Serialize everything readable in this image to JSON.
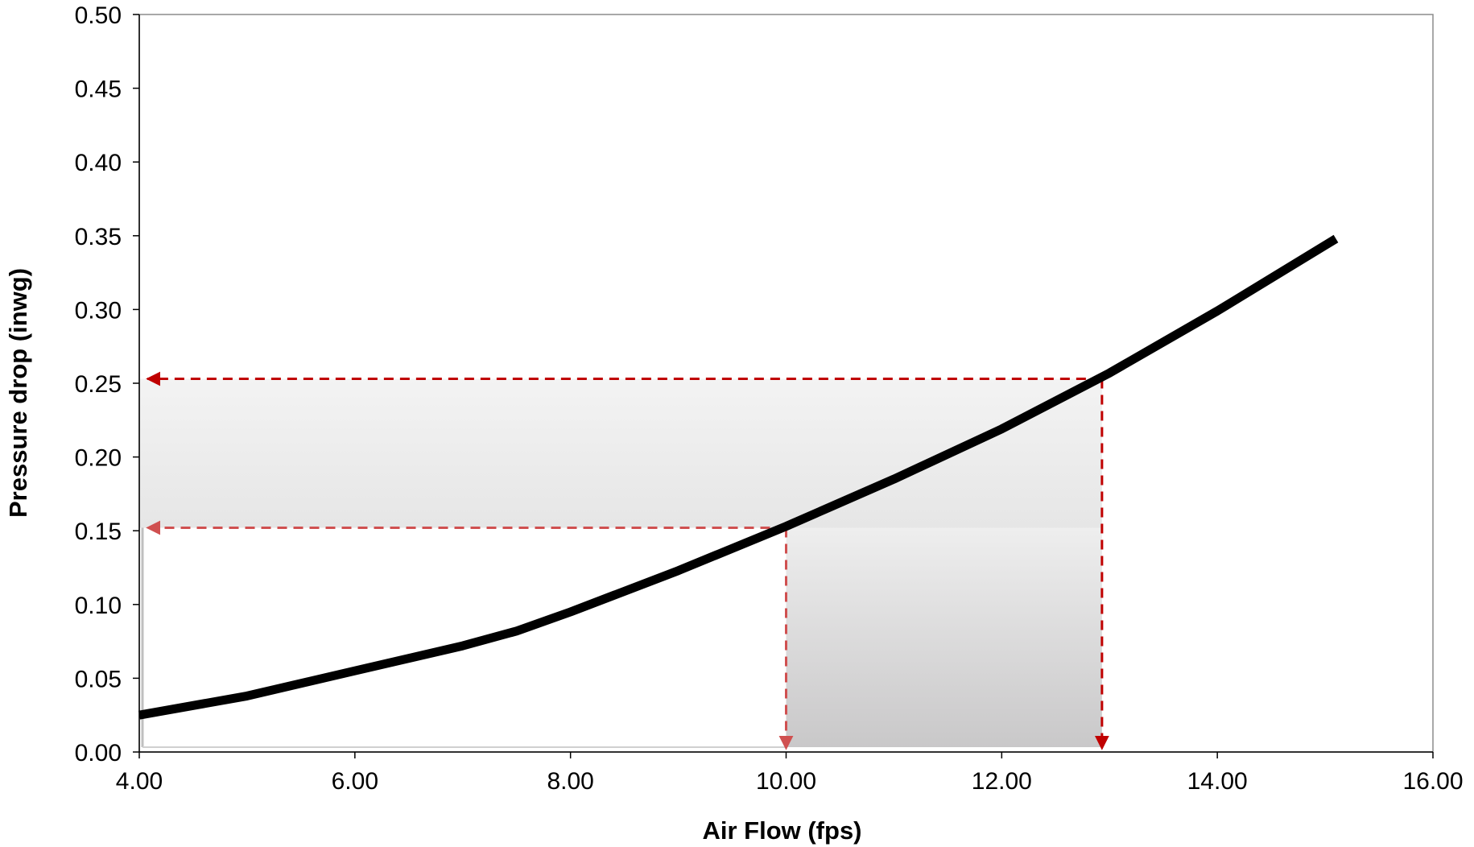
{
  "chart_data": {
    "type": "line",
    "title": "",
    "xlabel": "Air Flow (fps)",
    "ylabel": "Pressure drop (inwg)",
    "xlim": [
      4,
      16
    ],
    "ylim": [
      0,
      0.5
    ],
    "x_ticks": [
      4,
      6,
      8,
      10,
      12,
      14,
      16
    ],
    "x_tick_labels": [
      "4.00",
      "6.00",
      "8.00",
      "10.00",
      "12.00",
      "14.00",
      "16.00"
    ],
    "y_ticks": [
      0,
      0.05,
      0.1,
      0.15,
      0.2,
      0.25,
      0.3,
      0.35,
      0.4,
      0.45,
      0.5
    ],
    "y_tick_labels": [
      "0.00",
      "0.05",
      "0.10",
      "0.15",
      "0.20",
      "0.25",
      "0.30",
      "0.35",
      "0.40",
      "0.45",
      "0.50"
    ],
    "grid": false,
    "legend": "none",
    "series": [
      {
        "color": "#000000",
        "x": [
          4.0,
          5.0,
          6.0,
          7.0,
          7.5,
          8.0,
          9.0,
          10.0,
          11.0,
          12.0,
          13.0,
          14.0,
          15.1
        ],
        "y": [
          0.025,
          0.038,
          0.055,
          0.072,
          0.082,
          0.095,
          0.123,
          0.153,
          0.185,
          0.219,
          0.257,
          0.299,
          0.348
        ]
      }
    ],
    "annotations": [
      {
        "type": "dashed-arrow-lines",
        "color": "#c00000",
        "from_point": [
          10.0,
          0.152
        ],
        "to_x_axis": 10.0,
        "to_y_axis": 0.152
      },
      {
        "type": "dashed-arrow-lines",
        "color": "#c00000",
        "from_point": [
          12.93,
          0.253
        ],
        "to_x_axis": 12.93,
        "to_y_axis": 0.253
      },
      {
        "type": "shaded-band",
        "axis": "y",
        "range": [
          0.152,
          0.253
        ],
        "fill": "gradient-light-gray"
      },
      {
        "type": "shaded-band",
        "axis": "x",
        "range": [
          10.0,
          12.93
        ],
        "fill": "gradient-gray"
      }
    ]
  }
}
